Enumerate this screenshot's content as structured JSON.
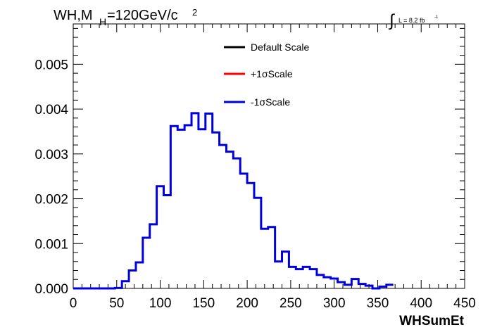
{
  "header": {
    "title_main": "WH,M",
    "title_sub": "H",
    "title_rest": "=120GeV/c",
    "title_sup": "2",
    "lumi_integral": "∫",
    "lumi_text": "L = 8.2 fb",
    "lumi_sup": "-1"
  },
  "chart_data": {
    "type": "line",
    "step": true,
    "xlabel": "WHSumEt",
    "ylabel": "",
    "xlim": [
      0,
      450
    ],
    "ylim": [
      0,
      0.0059
    ],
    "bin_width": 8,
    "x_ticks": [
      "0",
      "50",
      "100",
      "150",
      "200",
      "250",
      "300",
      "350",
      "400",
      "450"
    ],
    "y_ticks": [
      "0.000",
      "0.001",
      "0.002",
      "0.003",
      "0.004",
      "0.005"
    ],
    "legend": {
      "placement": "top-center"
    },
    "colors": {
      "default": "#000000",
      "plus": "#ff0000",
      "minus": "#0000dd"
    },
    "series": [
      {
        "name": "Default Scale",
        "color": "#000000",
        "drawn": false,
        "values": [
          0,
          0,
          0,
          0,
          0,
          0,
          1e-05,
          0.00016,
          0.0004,
          0.00058,
          0.00113,
          0.00143,
          0.00228,
          0.00208,
          0.00362,
          0.00354,
          0.00364,
          0.00391,
          0.00355,
          0.0039,
          0.00348,
          0.0032,
          0.00305,
          0.0029,
          0.00256,
          0.00235,
          0.00202,
          0.00133,
          0.00137,
          0.0006,
          0.00082,
          0.00048,
          0.00043,
          0.00048,
          0.00043,
          0.0003,
          0.00025,
          0.00022,
          0.00014,
          8e-05,
          0.00021,
          0.0001,
          6e-05,
          0,
          4e-05,
          8e-05
        ]
      },
      {
        "name": "+1σScale",
        "color": "#ff0000",
        "drawn": false,
        "values": [
          0,
          0,
          0,
          0,
          0,
          0,
          1e-05,
          0.00016,
          0.0004,
          0.00058,
          0.00113,
          0.00143,
          0.00228,
          0.00208,
          0.00362,
          0.00354,
          0.00364,
          0.00391,
          0.00355,
          0.0039,
          0.00348,
          0.0032,
          0.00305,
          0.0029,
          0.00256,
          0.00235,
          0.00202,
          0.00133,
          0.00137,
          0.0006,
          0.00082,
          0.00048,
          0.00043,
          0.00048,
          0.00043,
          0.0003,
          0.00025,
          0.00022,
          0.00014,
          8e-05,
          0.00021,
          0.0001,
          6e-05,
          0,
          4e-05,
          8e-05
        ]
      },
      {
        "name": "-1σScale",
        "color": "#0000dd",
        "drawn": true,
        "values": [
          0,
          0,
          0,
          0,
          0,
          0,
          1e-05,
          0.00016,
          0.0004,
          0.00058,
          0.00113,
          0.00143,
          0.00228,
          0.00208,
          0.00362,
          0.00354,
          0.00364,
          0.00391,
          0.00355,
          0.0039,
          0.00348,
          0.0032,
          0.00305,
          0.0029,
          0.00256,
          0.00235,
          0.00202,
          0.00133,
          0.00137,
          0.0006,
          0.00082,
          0.00048,
          0.00043,
          0.00048,
          0.00043,
          0.0003,
          0.00025,
          0.00022,
          0.00014,
          8e-05,
          0.00021,
          0.0001,
          6e-05,
          0,
          4e-05,
          8e-05
        ]
      }
    ]
  }
}
